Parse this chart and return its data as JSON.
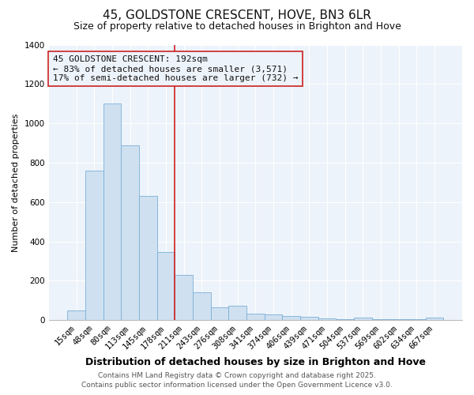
{
  "title_line1": "45, GOLDSTONE CRESCENT, HOVE, BN3 6LR",
  "title_line2": "Size of property relative to detached houses in Brighton and Hove",
  "xlabel": "Distribution of detached houses by size in Brighton and Hove",
  "ylabel": "Number of detached properties",
  "categories": [
    "15sqm",
    "48sqm",
    "80sqm",
    "113sqm",
    "145sqm",
    "178sqm",
    "211sqm",
    "243sqm",
    "276sqm",
    "308sqm",
    "341sqm",
    "374sqm",
    "406sqm",
    "439sqm",
    "471sqm",
    "504sqm",
    "537sqm",
    "569sqm",
    "602sqm",
    "634sqm",
    "667sqm"
  ],
  "values": [
    50,
    760,
    1100,
    890,
    630,
    345,
    230,
    140,
    65,
    72,
    35,
    28,
    20,
    16,
    8,
    3,
    12,
    3,
    3,
    3,
    14
  ],
  "bar_color": "#cfe0f0",
  "bar_edge_color": "#7ab0d8",
  "vline_x": 5.5,
  "vline_color": "#cc2222",
  "ylim": [
    0,
    1400
  ],
  "yticks": [
    0,
    200,
    400,
    600,
    800,
    1000,
    1200,
    1400
  ],
  "background_color": "#ffffff",
  "plot_bg_color": "#edf3fa",
  "grid_color": "#ffffff",
  "annotation_text": "45 GOLDSTONE CRESCENT: 192sqm\n← 83% of detached houses are smaller (3,571)\n17% of semi-detached houses are larger (732) →",
  "footer_line1": "Contains HM Land Registry data © Crown copyright and database right 2025.",
  "footer_line2": "Contains public sector information licensed under the Open Government Licence v3.0.",
  "title_fontsize": 11,
  "subtitle_fontsize": 9,
  "axis_label_fontsize": 9,
  "tick_fontsize": 7.5,
  "annotation_fontsize": 8,
  "footer_fontsize": 6.5,
  "ylabel_fontsize": 8
}
